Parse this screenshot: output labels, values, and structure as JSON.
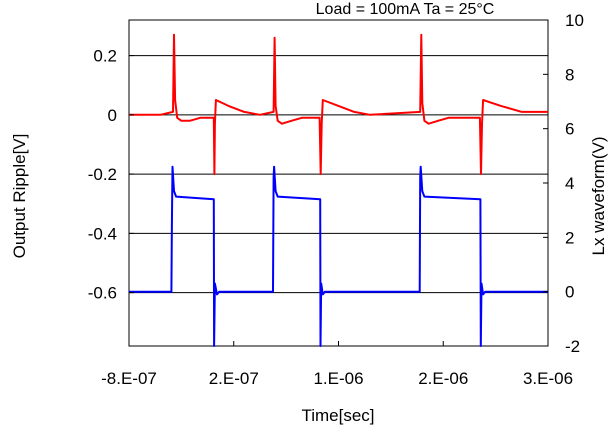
{
  "chart_data": {
    "type": "line",
    "title": "Load = 100mA  Ta = 25°C",
    "xlabel": "Time[sec]",
    "ylabel_left": "Output   Ripple[V]",
    "ylabel_right": "Lx   waveform(V)",
    "xlim": [
      -8e-07,
      3.2e-06
    ],
    "ylim_left": [
      -0.78,
      0.32
    ],
    "ylim_right": [
      -2,
      10
    ],
    "x_tick_values": [
      -8e-07,
      2e-07,
      1.2e-06,
      2.2e-06,
      3.2e-06
    ],
    "x_tick_labels": [
      "-8.E-07",
      "2.E-07",
      "1.E-06",
      "2.E-06",
      "3.E-06"
    ],
    "y_left_ticks": [
      0.2,
      0,
      -0.2,
      -0.4,
      -0.6
    ],
    "y_left_tick_labels": [
      "0.2",
      "0",
      "-0.2",
      "-0.4",
      "-0.6"
    ],
    "y_right_ticks": [
      10,
      8,
      6,
      4,
      2,
      0,
      -2
    ],
    "y_right_tick_labels": [
      "10",
      "8",
      "6",
      "4",
      "2",
      "0",
      "-2"
    ],
    "gridlines_left": [
      0.2,
      0,
      -0.2,
      -0.4,
      -0.6
    ],
    "grid": true,
    "series": [
      {
        "axis": "left",
        "color": "#ff0000",
        "x": [
          -8e-07,
          -5e-07,
          -3.8e-07,
          -3.7e-07,
          -3.6e-07,
          -3.4e-07,
          -3e-07,
          -2.2e-07,
          -1.2e-07,
          1e-08,
          1.5e-08,
          2e-08,
          3e-08,
          1.5e-07,
          3e-07,
          4.5e-07,
          5.8e-07,
          5.9e-07,
          6e-07,
          6.2e-07,
          6.6e-07,
          7.5e-07,
          8.5e-07,
          1.02e-06,
          1.03e-06,
          1.04e-06,
          1.05e-06,
          1.2e-06,
          1.35e-06,
          1.5e-06,
          1.98e-06,
          1.99e-06,
          2e-06,
          2.02e-06,
          2.06e-06,
          2.15e-06,
          2.25e-06,
          2.55e-06,
          2.56e-06,
          2.57e-06,
          2.58e-06,
          2.75e-06,
          2.95e-06,
          3.2e-06
        ],
        "y": [
          0.0,
          0.0,
          0.01,
          0.27,
          0.05,
          -0.01,
          -0.02,
          -0.02,
          -0.01,
          -0.01,
          -0.2,
          -0.03,
          0.05,
          0.03,
          0.01,
          0.0,
          0.01,
          0.26,
          0.03,
          -0.02,
          -0.03,
          -0.02,
          -0.01,
          -0.01,
          -0.2,
          -0.03,
          0.05,
          0.03,
          0.01,
          0.0,
          0.01,
          0.27,
          0.04,
          -0.02,
          -0.03,
          -0.02,
          -0.01,
          -0.01,
          -0.2,
          -0.03,
          0.05,
          0.03,
          0.01,
          0.01
        ]
      },
      {
        "axis": "right",
        "color": "#0000ff",
        "x": [
          -8e-07,
          -3.95e-07,
          -3.9e-07,
          -3.85e-07,
          -3.7e-07,
          -3.5e-07,
          1e-08,
          1.2e-08,
          2e-08,
          4e-08,
          6e-08,
          5.75e-07,
          5.8e-07,
          5.85e-07,
          6e-07,
          6.2e-07,
          1.025e-06,
          1.028e-06,
          1.035e-06,
          1.05e-06,
          1.07e-06,
          1.975e-06,
          1.98e-06,
          1.985e-06,
          2e-06,
          2.02e-06,
          2.555e-06,
          2.558e-06,
          2.565e-06,
          2.58e-06,
          2.6e-06,
          3.2e-06
        ],
        "y": [
          0.0,
          0.0,
          2.5,
          4.6,
          3.7,
          3.5,
          3.4,
          -2.0,
          0.3,
          -0.1,
          0.0,
          0.0,
          4.2,
          4.6,
          3.7,
          3.5,
          3.4,
          -2.0,
          0.3,
          -0.1,
          0.0,
          0.0,
          4.2,
          4.6,
          3.7,
          3.5,
          3.4,
          -2.0,
          0.3,
          -0.1,
          0.0,
          0.0
        ]
      }
    ]
  }
}
